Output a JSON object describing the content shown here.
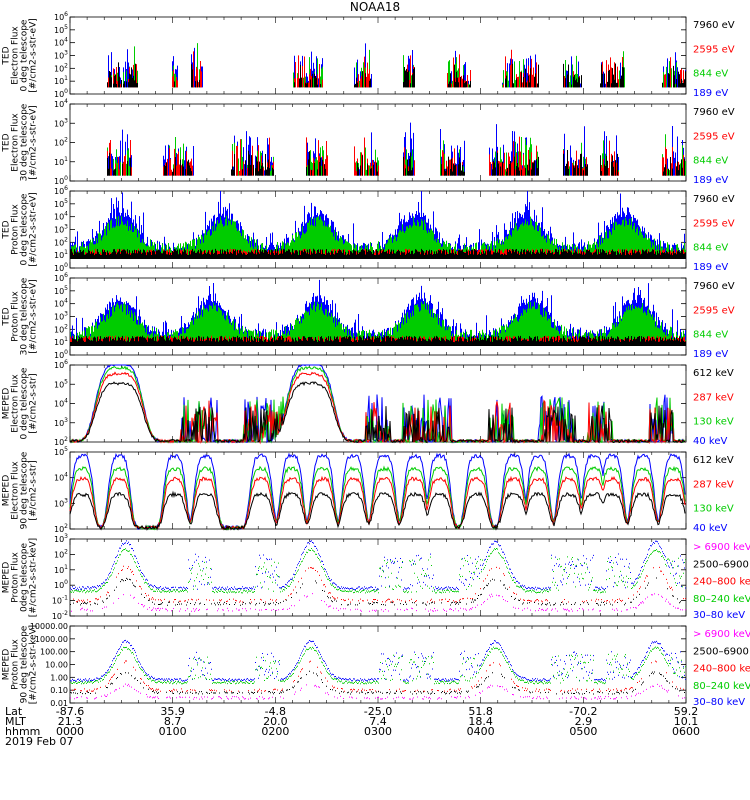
{
  "chart_data": {
    "title": "NOAA18",
    "type": "line",
    "x_range": [
      "0000",
      "0600"
    ],
    "x_ticks": [
      "0000",
      "0100",
      "0200",
      "0300",
      "0400",
      "0500",
      "0600"
    ],
    "orbit_rows": [
      {
        "label": "Lat",
        "values": [
          "-87.6",
          "35.9",
          "-4.8",
          "-25.0",
          "51.8",
          "-70.2",
          "59.2"
        ]
      },
      {
        "label": "MLT",
        "values": [
          "21.3",
          "8.7",
          "20.0",
          "7.4",
          "18.4",
          "2.9",
          "10.1"
        ]
      },
      {
        "label": "hhmm",
        "values": [
          "0000",
          "0100",
          "0200",
          "0300",
          "0400",
          "0500",
          "0600"
        ]
      }
    ],
    "date": "2019 Feb 07",
    "panels": [
      {
        "ylabel": [
          "TED",
          "Electron Flux",
          "0 deg telescope",
          "[#/cm2-s-str-eV]"
        ],
        "yticks": [
          "10^0",
          "10^1",
          "10^2",
          "10^3",
          "10^4",
          "10^5",
          "10^6"
        ],
        "ylim": [
          0,
          6
        ],
        "series": [
          {
            "name": "7960 eV",
            "color": "#000000"
          },
          {
            "name": "2595 eV",
            "color": "#ff0000"
          },
          {
            "name": "844 eV",
            "color": "#00cc00"
          },
          {
            "name": "189 eV",
            "color": "#0000ff"
          }
        ],
        "active": [
          [
            0.06,
            0.11
          ],
          [
            0.165,
            0.175
          ],
          [
            0.195,
            0.215
          ],
          [
            0.36,
            0.41
          ],
          [
            0.46,
            0.49
          ],
          [
            0.54,
            0.56
          ],
          [
            0.61,
            0.65
          ],
          [
            0.7,
            0.76
          ],
          [
            0.8,
            0.83
          ],
          [
            0.86,
            0.9
          ],
          [
            0.96,
            1.0
          ]
        ],
        "style": "spiky",
        "heights": {
          "7960 eV": 1.4,
          "2595 eV": 2.0,
          "844 eV": 2.4,
          "189 eV": 2.6
        }
      },
      {
        "ylabel": [
          "TED",
          "Electron Flux",
          "30 deg telescope",
          "[#/cm2-s-str-eV]"
        ],
        "yticks": [
          "10^0",
          "10^1",
          "10^2",
          "10^3",
          "10^4"
        ],
        "ylim": [
          0,
          4
        ],
        "series": [
          {
            "name": "7960 eV",
            "color": "#000000"
          },
          {
            "name": "2595 eV",
            "color": "#ff0000"
          },
          {
            "name": "844 eV",
            "color": "#00cc00"
          },
          {
            "name": "189 eV",
            "color": "#0000ff"
          }
        ],
        "active": [
          [
            0.06,
            0.1
          ],
          [
            0.15,
            0.2
          ],
          [
            0.26,
            0.33
          ],
          [
            0.38,
            0.42
          ],
          [
            0.46,
            0.5
          ],
          [
            0.54,
            0.56
          ],
          [
            0.6,
            0.64
          ],
          [
            0.68,
            0.76
          ],
          [
            0.8,
            0.84
          ],
          [
            0.86,
            0.89
          ],
          [
            0.96,
            1.0
          ]
        ],
        "style": "spiky",
        "heights": {
          "7960 eV": 0.9,
          "2595 eV": 1.4,
          "844 eV": 1.6,
          "189 eV": 1.9
        }
      },
      {
        "ylabel": [
          "TED",
          "Proton Flux",
          "0 deg telescope",
          "[#/cm2-s-str-eV]"
        ],
        "yticks": [
          "10^0",
          "10^1",
          "10^2",
          "10^3",
          "10^4",
          "10^5",
          "10^6"
        ],
        "ylim": [
          0,
          6
        ],
        "series": [
          {
            "name": "7960 eV",
            "color": "#000000"
          },
          {
            "name": "2595 eV",
            "color": "#ff0000"
          },
          {
            "name": "844 eV",
            "color": "#00cc00"
          },
          {
            "name": "189 eV",
            "color": "#0000ff"
          }
        ],
        "active": [
          [
            0.0,
            1.0
          ]
        ],
        "style": "humps",
        "humps": [
          0.08,
          0.25,
          0.4,
          0.56,
          0.74,
          0.9
        ],
        "heights": {
          "7960 eV": 1.0,
          "2595 eV": 1.2,
          "844 eV": 3.0,
          "189 eV": 4.0
        }
      },
      {
        "ylabel": [
          "TED",
          "Proton Flux",
          "30 deg telescope",
          "[#/cm2-s-str-eV]"
        ],
        "yticks": [
          "10^0",
          "10^1",
          "10^2",
          "10^3",
          "10^4",
          "10^5",
          "10^6"
        ],
        "ylim": [
          0,
          6
        ],
        "series": [
          {
            "name": "7960 eV",
            "color": "#000000"
          },
          {
            "name": "2595 eV",
            "color": "#ff0000"
          },
          {
            "name": "844 eV",
            "color": "#00cc00"
          },
          {
            "name": "189 eV",
            "color": "#0000ff"
          }
        ],
        "active": [
          [
            0.0,
            1.0
          ]
        ],
        "style": "humps",
        "humps": [
          0.08,
          0.23,
          0.4,
          0.57,
          0.75,
          0.92
        ],
        "heights": {
          "7960 eV": 1.0,
          "2595 eV": 1.2,
          "844 eV": 3.2,
          "189 eV": 4.2
        }
      },
      {
        "ylabel": [
          "MEPED",
          "Electron Flux",
          "0 deg telescope",
          "[#/cm2-s-str]"
        ],
        "yticks": [
          "10^2",
          "10^3",
          "10^4",
          "10^5",
          "10^6"
        ],
        "ylim": [
          2,
          6
        ],
        "series": [
          {
            "name": "612 keV",
            "color": "#000000"
          },
          {
            "name": "287 keV",
            "color": "#ff0000"
          },
          {
            "name": "130 keV",
            "color": "#00cc00"
          },
          {
            "name": "40 keV",
            "color": "#0000ff"
          }
        ],
        "active": [
          [
            0.0,
            1.0
          ]
        ],
        "style": "domes",
        "humps": [
          0.08,
          0.39
        ],
        "heights": {
          "612 keV": 3.0,
          "287 keV": 3.5,
          "130 keV": 3.8,
          "40 keV": 4.0
        },
        "bursts": [
          0.2,
          0.22,
          0.3,
          0.33,
          0.5,
          0.56,
          0.6,
          0.7,
          0.78,
          0.8,
          0.86,
          0.96
        ]
      },
      {
        "ylabel": [
          "MEPED",
          "Electron Flux",
          "90 deg telescope",
          "[#/cm2-s-str]"
        ],
        "yticks": [
          "10^2",
          "10^3",
          "10^4",
          "10^5"
        ],
        "ylim": [
          2,
          5
        ],
        "series": [
          {
            "name": "612 keV",
            "color": "#000000"
          },
          {
            "name": "287 keV",
            "color": "#ff0000"
          },
          {
            "name": "130 keV",
            "color": "#00cc00"
          },
          {
            "name": "40 keV",
            "color": "#0000ff"
          }
        ],
        "active": [
          [
            0.0,
            1.0
          ]
        ],
        "style": "multidome",
        "humps": [
          0.02,
          0.08,
          0.17,
          0.22,
          0.31,
          0.36,
          0.41,
          0.46,
          0.51,
          0.56,
          0.6,
          0.66,
          0.72,
          0.76,
          0.81,
          0.85,
          0.88,
          0.93,
          0.98
        ],
        "heights": {
          "612 keV": 1.3,
          "287 keV": 1.9,
          "130 keV": 2.3,
          "40 keV": 2.8
        }
      },
      {
        "ylabel": [
          "MEPED",
          "Proton Flux",
          "0deg telescope",
          "[#/cm2-s-str-keV]"
        ],
        "yticks": [
          "10^-2",
          "10^-1",
          "10^0",
          "10^1",
          "10^2",
          "10^3"
        ],
        "ylim": [
          -2,
          3
        ],
        "series": [
          {
            "name": "> 6900 keV",
            "color": "#ff00ff"
          },
          {
            "name": "2500–6900",
            "color": "#000000"
          },
          {
            "name": "240–800 keV",
            "color": "#ff0000"
          },
          {
            "name": "80–240 keV",
            "color": "#00cc00"
          },
          {
            "name": "30–80 keV",
            "color": "#0000ff"
          }
        ],
        "active": [
          [
            0.0,
            1.0
          ]
        ],
        "style": "proton",
        "humps": [
          0.09,
          0.39,
          0.69,
          0.95
        ],
        "bursts": [
          0.21,
          0.32,
          0.52,
          0.57,
          0.65,
          0.8,
          0.83,
          0.89,
          0.98
        ]
      },
      {
        "ylabel": [
          "MEPED",
          "Proton Flux",
          "90 deg telescope",
          "[#/cm2-s-str-keV]"
        ],
        "yticks": [
          "0.01",
          "0.10",
          "1.00",
          "10.00",
          "100.00",
          "1000.00",
          "10000.00"
        ],
        "ylim": [
          -2,
          4
        ],
        "series": [
          {
            "name": "> 6900 keV",
            "color": "#ff00ff"
          },
          {
            "name": "2500–6900",
            "color": "#000000"
          },
          {
            "name": "240–800 keV",
            "color": "#ff0000"
          },
          {
            "name": "80–240 keV",
            "color": "#00cc00"
          },
          {
            "name": "30–80 keV",
            "color": "#0000ff"
          }
        ],
        "active": [
          [
            0.0,
            1.0
          ]
        ],
        "style": "proton",
        "humps": [
          0.09,
          0.39,
          0.69,
          0.95
        ],
        "bursts": [
          0.21,
          0.32,
          0.52,
          0.57,
          0.65,
          0.8,
          0.83,
          0.89,
          0.98
        ]
      }
    ]
  }
}
